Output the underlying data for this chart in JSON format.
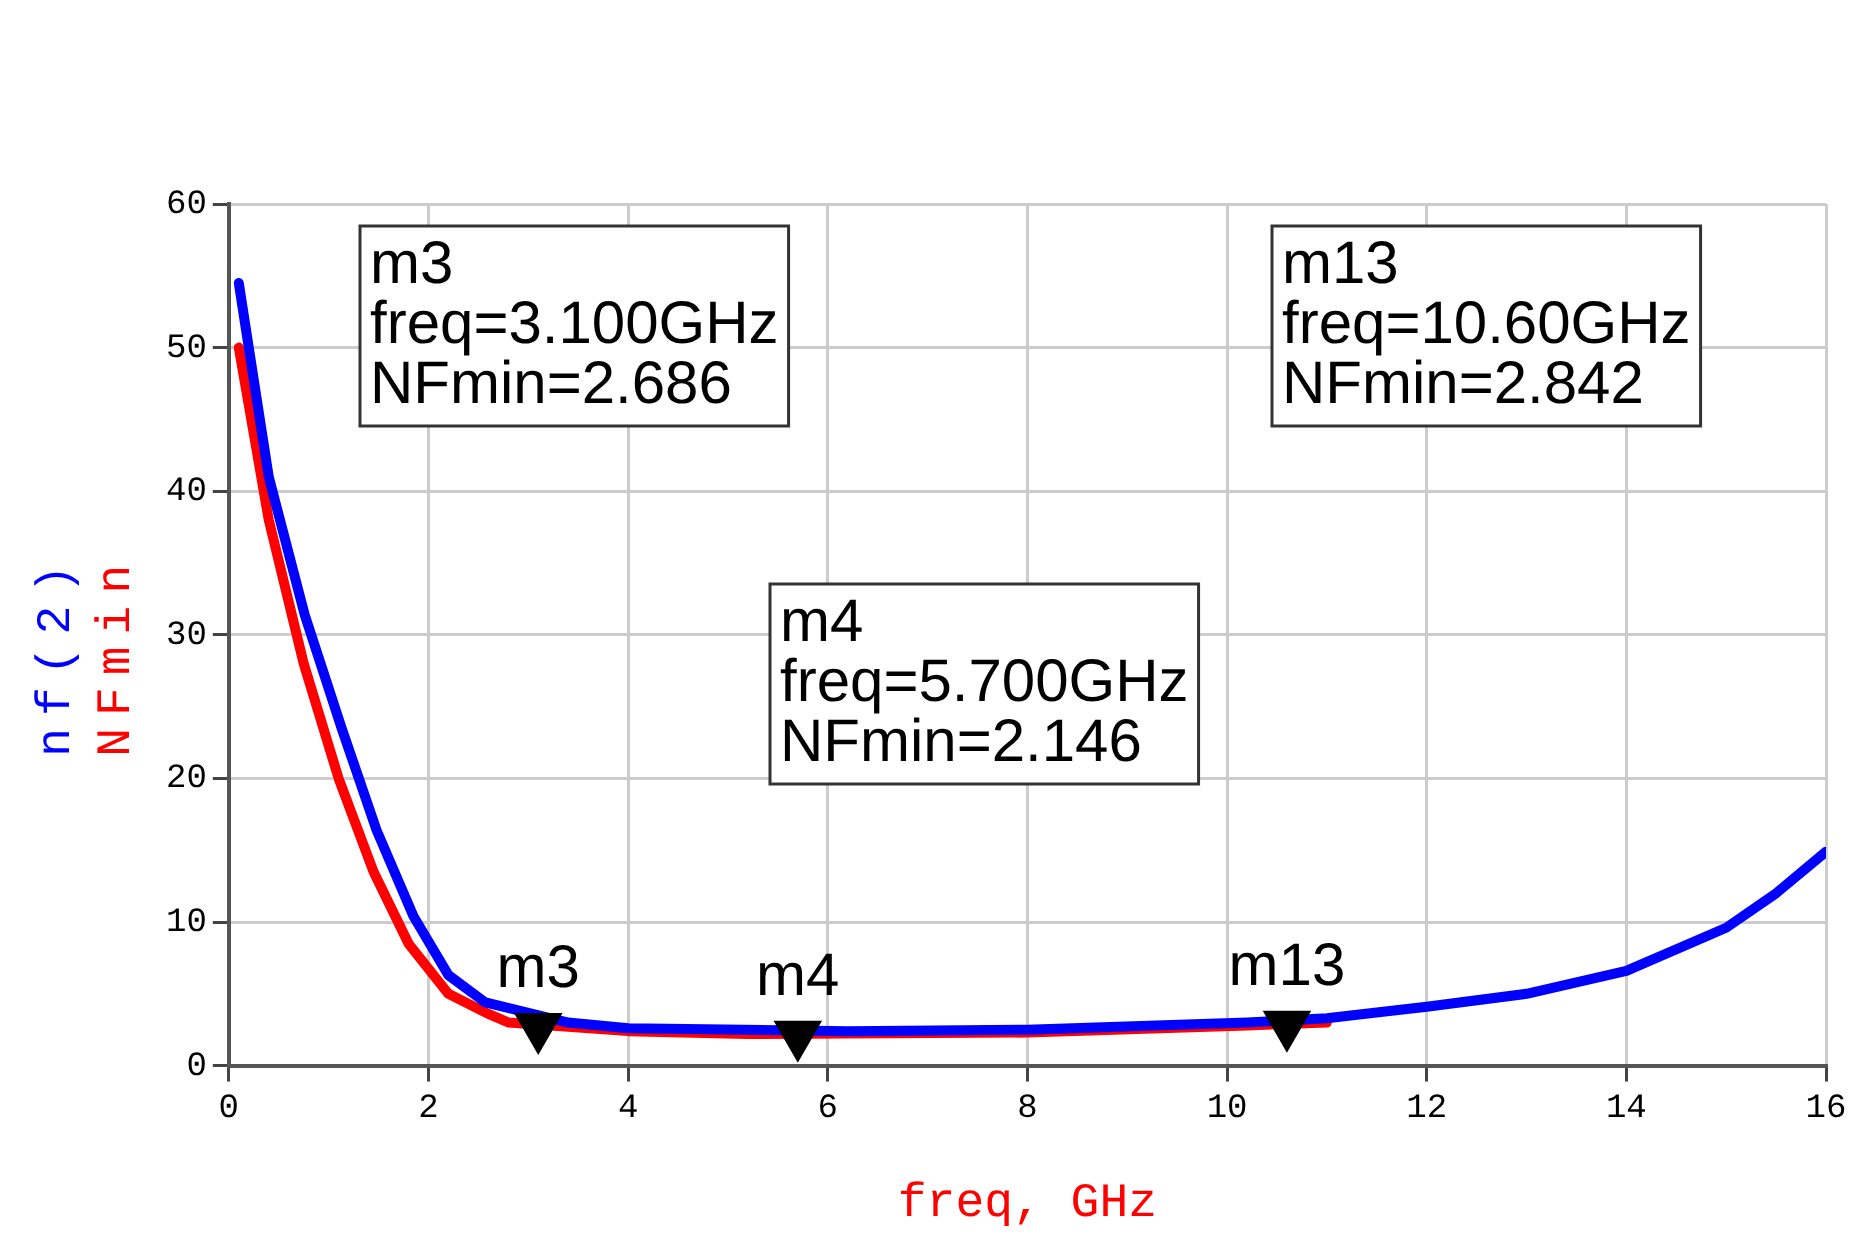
{
  "chart_data": {
    "type": "line",
    "xlabel": "freq, GHz",
    "x": [
      0.1,
      0.4,
      0.76,
      1.13,
      1.48,
      1.85,
      2.2,
      2.57,
      3.4,
      4,
      6.2,
      8,
      10.2,
      11,
      12,
      13,
      14,
      15,
      15.5,
      16
    ],
    "series": [
      {
        "name": "nf(2)",
        "color": "#0000ff",
        "values": [
          54.5,
          41,
          31.4,
          23.5,
          16.4,
          10.4,
          6.3,
          4.4,
          3.0,
          2.6,
          2.4,
          2.5,
          3.0,
          3.3,
          4.1,
          5.0,
          6.6,
          9.6,
          12,
          14.9
        ]
      },
      {
        "name": "NFmin",
        "color": "#ff0000",
        "x": [
          0.1,
          0.4,
          0.75,
          1.1,
          1.45,
          1.8,
          2.2,
          2.6,
          2.8,
          4,
          5.2,
          8,
          10.2,
          11
        ],
        "values": [
          50,
          38,
          28,
          20,
          13.5,
          8.5,
          5,
          3.6,
          3.0,
          2.4,
          2.2,
          2.3,
          2.8,
          3.0
        ]
      },
      {
        "type": "scatter",
        "marker": "triangle",
        "color": "#000000",
        "x": [
          3.1,
          5.7,
          10.6
        ],
        "values": [
          2.686,
          2.146,
          2.842
        ]
      }
    ],
    "xlim": [
      0,
      16
    ],
    "xticks": [
      0,
      2,
      4,
      6,
      8,
      10,
      12,
      14,
      16
    ],
    "ylim": [
      0,
      60
    ],
    "yticks": [
      0,
      10,
      20,
      30,
      40,
      50,
      60
    ],
    "grid": true,
    "legend": "left",
    "marker": "none",
    "line_style": "solid",
    "annotations": [
      {
        "text": "m3",
        "x": 3.1,
        "y": 2.686
      },
      {
        "text": "m4",
        "x": 5.7,
        "y": 2.146
      },
      {
        "text": "m13",
        "x": 10.6,
        "y": 2.842
      },
      "m3\nfreq=3.100GHz\nNFmin=2.686",
      "m4\nfreq=5.700GHz\nNFmin=2.146",
      "m13\nfreq=10.60GHz\nNFmin=2.842"
    ]
  }
}
